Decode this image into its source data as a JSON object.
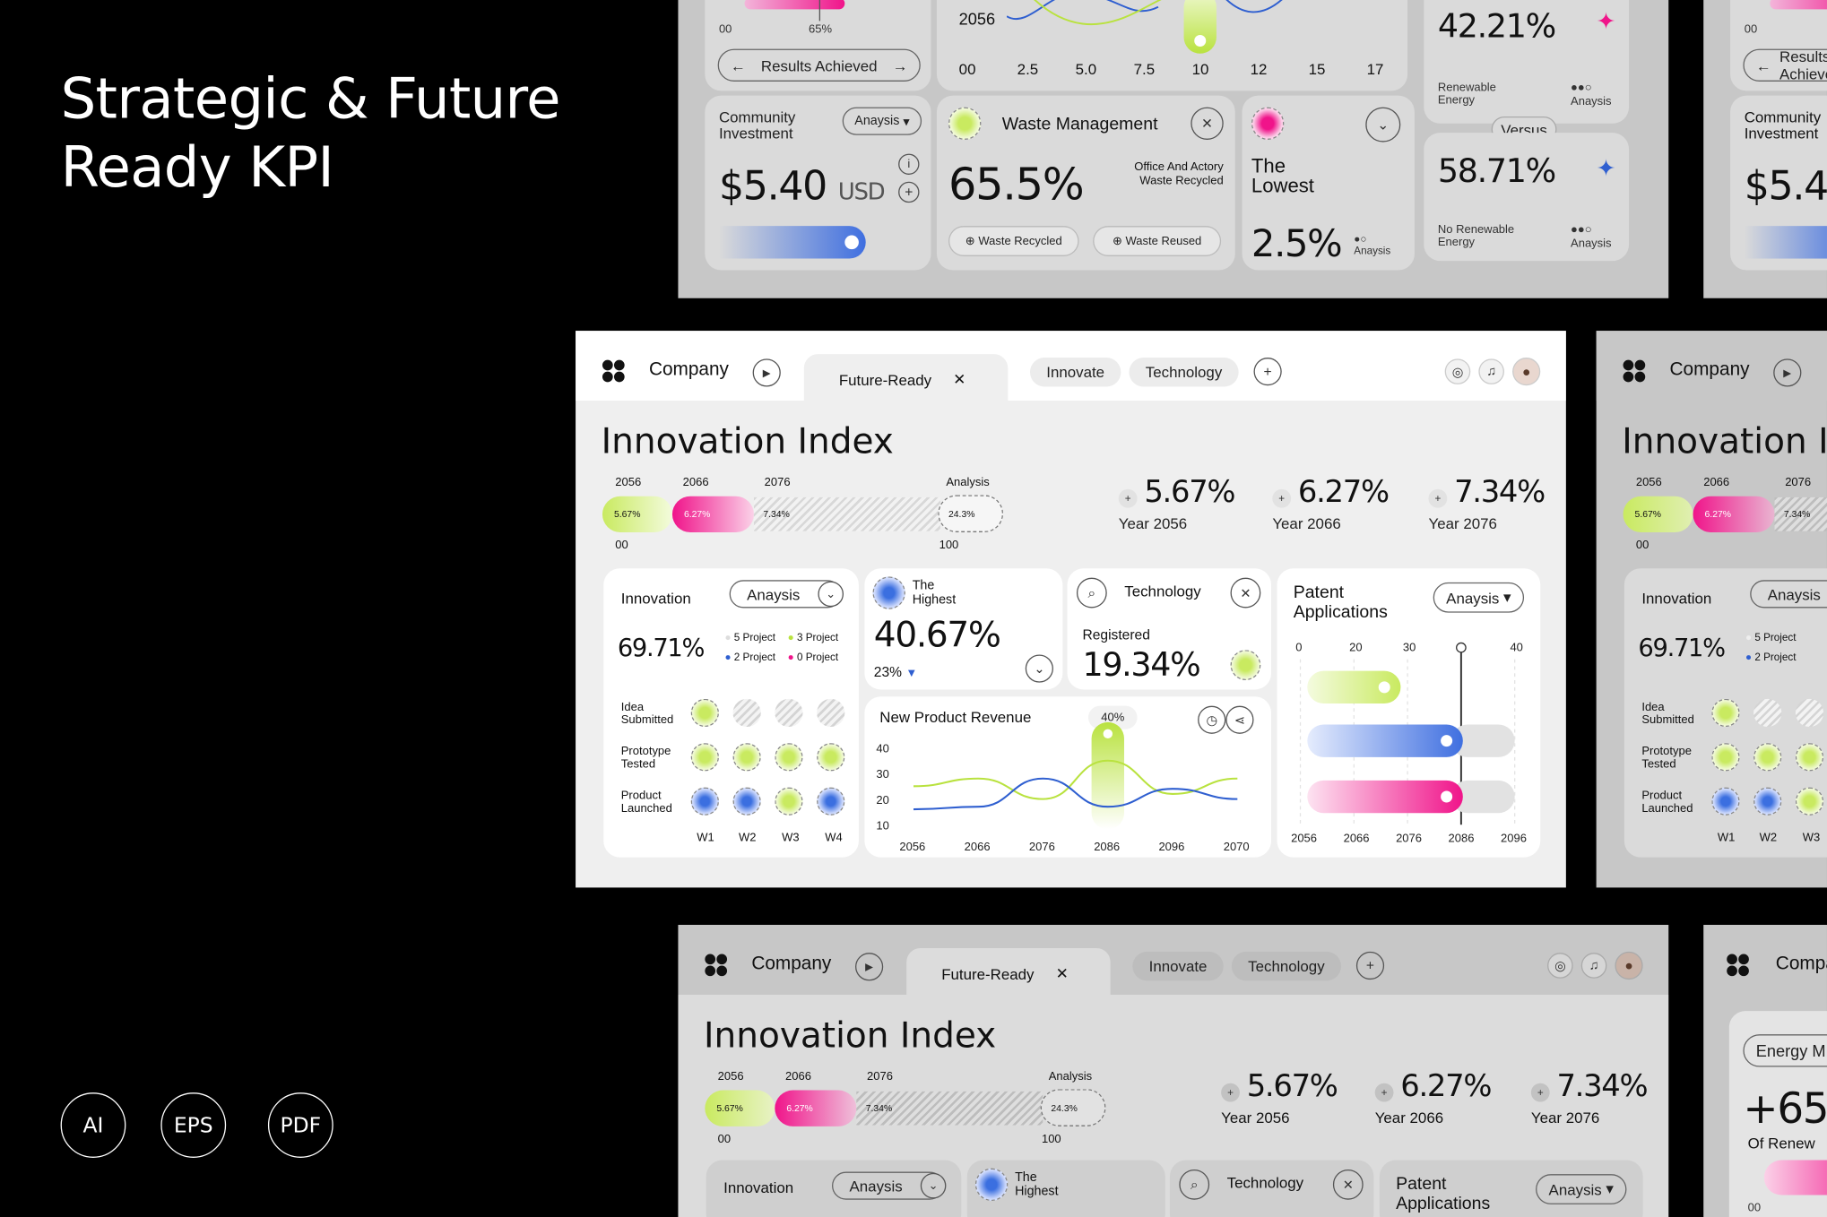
{
  "left": {
    "title_line1": "Strategic & Future",
    "title_line2": "Ready KPI",
    "formats": [
      "AI",
      "EPS",
      "PDF"
    ]
  },
  "top": {
    "range_start": "00",
    "range_mark": "65%",
    "results_button": "Results Achieved",
    "year_label": "2056",
    "x_ticks": [
      "00",
      "2.5",
      "5.0",
      "7.5",
      "10",
      "12",
      "15",
      "17"
    ],
    "renewable_pct": "42.21%",
    "renewable_label": "Renewable Energy",
    "versus": "Versus",
    "no_renewable_pct": "58.71%",
    "no_renewable_label": "No Renewable Energy",
    "analysis": "Anaysis",
    "community_label": "Community Investment",
    "community_value": "$5.40",
    "community_unit": "USD",
    "waste_title": "Waste Management",
    "waste_pct": "65.5%",
    "waste_note": "Office And Actory Waste Recycled",
    "waste_recycled": "Waste Recycled",
    "waste_reused": "Waste Reused",
    "lowest_label": "The Lowest",
    "lowest_value": "2.5%"
  },
  "dash": {
    "company": "Company",
    "tab_active": "Future-Ready",
    "tab_innovate": "Innovate",
    "tab_technology": "Technology",
    "page_title": "Innovation Index",
    "analysis_label": "Analysis",
    "progress": {
      "years": [
        "2056",
        "2066",
        "2076"
      ],
      "values": [
        "5.67%",
        "6.27%",
        "7.34%"
      ],
      "analysis_value": "24.3%",
      "min": "00",
      "max": "100"
    },
    "kpis": [
      {
        "value": "5.67%",
        "label": "Year 2056"
      },
      {
        "value": "6.27%",
        "label": "Year 2066"
      },
      {
        "value": "7.34%",
        "label": "Year 2076"
      }
    ],
    "innovation": {
      "title": "Innovation",
      "dropdown": "Anaysis",
      "value": "69.71%",
      "legend": [
        "5 Project",
        "3 Project",
        "2 Project",
        "0 Project"
      ],
      "rows": [
        "Idea Submitted",
        "Prototype Tested",
        "Product Launched"
      ],
      "weeks": [
        "W1",
        "W2",
        "W3",
        "W4"
      ]
    },
    "highest": {
      "label": "The Highest",
      "value": "40.67%",
      "delta": "23%"
    },
    "technology": {
      "title": "Technology",
      "label": "Registered",
      "value": "19.34%"
    },
    "revenue": {
      "title": "New Product Revenue",
      "badge": "40%"
    },
    "patent": {
      "title": "Patent Applications",
      "dropdown": "Anaysis",
      "marker_year": "2086"
    }
  },
  "chart_data": [
    {
      "type": "line",
      "title": "New Product Revenue",
      "x": [
        "2056",
        "2066",
        "2076",
        "2086",
        "2096",
        "2070"
      ],
      "ylim": [
        10,
        40
      ],
      "y_ticks": [
        "40",
        "30",
        "20",
        "10"
      ],
      "series": [
        {
          "name": "green",
          "color": "#b9e23f",
          "values": [
            25,
            28,
            20,
            35,
            22,
            28
          ]
        },
        {
          "name": "blue",
          "color": "#2f5fd0",
          "values": [
            16,
            17,
            28,
            17,
            24,
            20
          ]
        }
      ]
    },
    {
      "type": "bar",
      "title": "Patent Applications",
      "orientation": "horizontal",
      "x_top_ticks": [
        "0",
        "20",
        "30",
        "",
        "40"
      ],
      "x_bottom_ticks": [
        "2056",
        "2066",
        "2076",
        "2086",
        "2096"
      ],
      "series": [
        {
          "name": "green",
          "color": "#c9ea60",
          "value": 18
        },
        {
          "name": "blue",
          "color": "#3f6fe0",
          "value": 30
        },
        {
          "name": "pink",
          "color": "#f0148a",
          "value": 30
        }
      ]
    }
  ]
}
